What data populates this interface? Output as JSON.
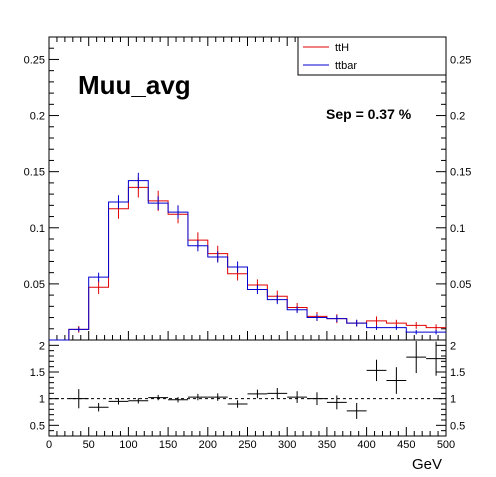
{
  "chart_data": [
    {
      "type": "histogram",
      "title": "Muu_avg",
      "annotation": "Sep = 0.37 %",
      "x_edges": [
        0,
        25,
        50,
        75,
        100,
        125,
        150,
        175,
        200,
        225,
        250,
        275,
        300,
        325,
        350,
        375,
        400,
        425,
        450,
        475,
        500
      ],
      "xlim": [
        0,
        500
      ],
      "ylim": [
        0,
        0.27
      ],
      "y_ticks": [
        0.05,
        0.1,
        0.15,
        0.2,
        0.25
      ],
      "y_tick_labels": [
        "0.05",
        "0.1",
        "0.15",
        "0.2",
        "0.25"
      ],
      "legend_position": "top-right",
      "series": [
        {
          "name": "ttH",
          "color": "#e00000",
          "values": [
            0.0,
            0.0095,
            0.047,
            0.117,
            0.136,
            0.124,
            0.112,
            0.089,
            0.077,
            0.059,
            0.049,
            0.039,
            0.029,
            0.021,
            0.019,
            0.015,
            0.017,
            0.015,
            0.013,
            0.011
          ],
          "errors": [
            0.0,
            0.003,
            0.006,
            0.009,
            0.009,
            0.009,
            0.008,
            0.007,
            0.007,
            0.006,
            0.005,
            0.005,
            0.004,
            0.004,
            0.004,
            0.003,
            0.004,
            0.003,
            0.003,
            0.003
          ]
        },
        {
          "name": "ttbar",
          "color": "#0000d0",
          "values": [
            0.0,
            0.0095,
            0.056,
            0.123,
            0.142,
            0.122,
            0.114,
            0.084,
            0.074,
            0.065,
            0.045,
            0.036,
            0.027,
            0.02,
            0.019,
            0.015,
            0.011,
            0.011,
            0.007,
            0.007
          ],
          "errors": [
            0.0,
            0.002,
            0.004,
            0.006,
            0.007,
            0.006,
            0.006,
            0.005,
            0.005,
            0.005,
            0.004,
            0.004,
            0.003,
            0.003,
            0.003,
            0.003,
            0.002,
            0.002,
            0.002,
            0.002
          ]
        }
      ]
    },
    {
      "type": "scatter",
      "xlabel": "GeV",
      "xlim": [
        0,
        500
      ],
      "ylim": [
        0.3,
        2.1
      ],
      "x_ticks": [
        0,
        50,
        100,
        150,
        200,
        250,
        300,
        350,
        400,
        450,
        500
      ],
      "x_tick_labels": [
        "0",
        "50",
        "100",
        "150",
        "200",
        "250",
        "300",
        "350",
        "400",
        "450",
        "500"
      ],
      "y_ticks": [
        0.5,
        1,
        1.5,
        2
      ],
      "y_tick_labels": [
        "0.5",
        "1",
        "1.5",
        "2"
      ],
      "reference_line": 1,
      "x": [
        37.5,
        62.5,
        87.5,
        112.5,
        137.5,
        162.5,
        187.5,
        212.5,
        237.5,
        262.5,
        287.5,
        312.5,
        337.5,
        362.5,
        387.5,
        412.5,
        437.5,
        462.5,
        487.5
      ],
      "values": [
        1.0,
        0.84,
        0.95,
        0.96,
        1.02,
        0.98,
        1.03,
        1.03,
        0.9,
        1.09,
        1.1,
        1.03,
        1.0,
        0.93,
        0.77,
        1.53,
        1.34,
        1.78,
        1.75
      ],
      "errors": [
        0.18,
        0.08,
        0.06,
        0.05,
        0.05,
        0.05,
        0.06,
        0.07,
        0.07,
        0.08,
        0.1,
        0.11,
        0.12,
        0.13,
        0.15,
        0.2,
        0.25,
        0.3,
        0.32
      ]
    }
  ]
}
